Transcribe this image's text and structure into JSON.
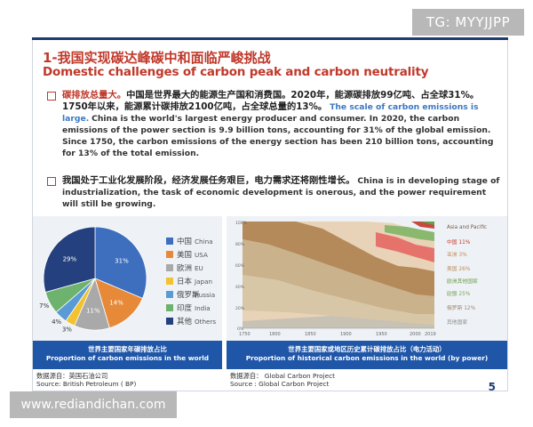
{
  "watermarks": {
    "top": "TG: MYYJJPP",
    "bottom": "www.rediandichan.com"
  },
  "slide": {
    "title_cn": "1-我国实现碳达峰碳中和面临严峻挑战",
    "title_en": "Domestic challenges of carbon peak and carbon neutrality",
    "p1_lead": "碳排放总量大。",
    "p1_cn": "中国是世界最大的能源生产国和消费国。2020年，能源碳排放99亿吨、占全球31%。1750年以来，能源累计碳排放2100亿吨，占全球总量的13%。",
    "p1_en_blue": "The scale of carbon emissions is large.",
    "p1_en": "China is the world's largest energy producer and consumer. In 2020, the carbon emissions of the power section is 9.9 billion tons, accounting for 31% of the global emission.  Since 1750, the carbon emissions of the energy section has been 210 billion tons, accounting for 13% of the total emission.",
    "p2_cn": "我国处于工业化发展阶段，经济发展任务艰巨，电力需求还将刚性增长。",
    "p2_en": "China is in developing stage of industrialization, the task of economic development is onerous, and the power requirement will still be growing.",
    "page_number": "5"
  },
  "left_chart": {
    "caption_cn": "世界主要国家年碳排放占比",
    "caption_en": "Proportion of carbon emissions in the world",
    "source_cn": "数据源自：英国石油公司",
    "source_en": "Source: British Petroleum ( BP)"
  },
  "right_chart": {
    "caption_cn": "世界主要国家或地区历史累计碳排放占比（电力活动）",
    "caption_en": "Proportion of historical carbon emissions in the world (by power)",
    "source_cn": "数据源自： Global Carbon Project",
    "source_en": "Source :  Global Carbon Project",
    "right_labels": [
      "Asia and Pacific",
      "中国 11%",
      "亚洲 3%",
      "美国 26%",
      "欧洲其他国家",
      "欧盟 25%",
      "俄罗斯 12%",
      "其他国家"
    ]
  },
  "chart_data": [
    {
      "type": "pie",
      "title": "世界主要国家年碳排放占比",
      "categories": [
        "中国 China",
        "美国 USA",
        "欧洲 EU",
        "日本 Japan",
        "俄罗斯 Russia",
        "印度 India",
        "其他 Others"
      ],
      "legend_cn": [
        "中国",
        "美国",
        "欧洲",
        "日本",
        "俄罗斯",
        "印度",
        "其他"
      ],
      "legend_en": [
        "China",
        "USA",
        "EU",
        "Japan",
        "Russia",
        "India",
        "Others"
      ],
      "values": [
        31,
        14,
        11,
        3,
        4,
        7,
        29
      ],
      "labels": [
        "31%",
        "14%",
        "11%",
        "3%",
        "4%",
        "7%",
        "29%"
      ],
      "colors": [
        "#3d6fbe",
        "#e68a3a",
        "#a9a9a9",
        "#f2c230",
        "#5b9bd5",
        "#6db36d",
        "#24407e"
      ],
      "legend": "right"
    },
    {
      "type": "area",
      "title": "世界主要国家或地区历史累计碳排放占比（电力活动）",
      "x_ticks": [
        "1750",
        "1800",
        "1850",
        "1900",
        "1950",
        "2000",
        "2019"
      ],
      "y_ticks": [
        "100%",
        "80%",
        "60%",
        "40%",
        "20%",
        "0%"
      ],
      "stacked": "percent"
    }
  ]
}
